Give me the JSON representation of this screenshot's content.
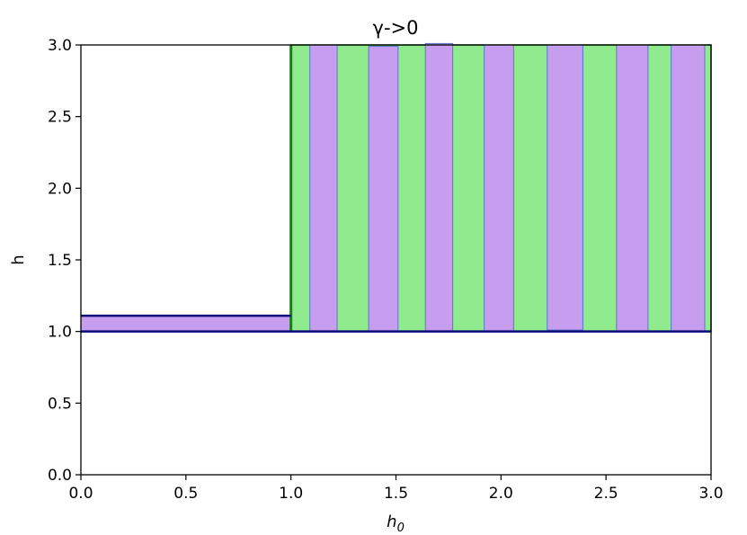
{
  "chart_data": {
    "type": "area",
    "title": "γ->0",
    "xlabel": "h",
    "xlabel_subscript": "0",
    "ylabel": "h",
    "xlim": [
      0.0,
      3.0
    ],
    "ylim": [
      0.0,
      3.0
    ],
    "xticks": [
      "0.0",
      "0.5",
      "1.0",
      "1.5",
      "2.0",
      "2.5",
      "3.0"
    ],
    "yticks": [
      "0.0",
      "0.5",
      "1.0",
      "1.5",
      "2.0",
      "2.5",
      "3.0"
    ],
    "grid": false,
    "legend": "none",
    "colors": {
      "green_fill": "#90ea8e",
      "green_edge": "#1e7a1e",
      "purple_fill": "#c79df0",
      "purple_edge": "#5a78c8",
      "boundary": "#0a0a7a"
    },
    "regions": {
      "green_band": {
        "x": [
          1.0,
          3.0
        ],
        "y": [
          1.0,
          3.0
        ]
      },
      "purple_low_band": {
        "x": [
          0.0,
          1.0
        ],
        "y": [
          1.0,
          1.11
        ]
      },
      "purple_strips": [
        {
          "x0": 1.09,
          "x1": 1.22,
          "y0": 1.0,
          "y1": 3.0
        },
        {
          "x0": 1.37,
          "x1": 1.51,
          "y0": 1.0,
          "y1": 2.99
        },
        {
          "x0": 1.64,
          "x1": 1.77,
          "y0": 1.0,
          "y1": 3.01
        },
        {
          "x0": 1.92,
          "x1": 2.06,
          "y0": 1.0,
          "y1": 3.0
        },
        {
          "x0": 2.22,
          "x1": 2.39,
          "y0": 1.01,
          "y1": 3.0
        },
        {
          "x0": 2.55,
          "x1": 2.7,
          "y0": 1.0,
          "y1": 3.0
        },
        {
          "x0": 2.81,
          "x1": 2.97,
          "y0": 1.0,
          "y1": 3.0
        }
      ],
      "boundary_lines": [
        {
          "x": [
            0.0,
            3.0
          ],
          "y": [
            1.0,
            1.0
          ]
        },
        {
          "x": [
            0.0,
            1.0
          ],
          "y": [
            1.11,
            1.11
          ]
        }
      ],
      "vertical_boundary": {
        "x": 1.0,
        "y": [
          1.0,
          3.0
        ]
      }
    }
  }
}
